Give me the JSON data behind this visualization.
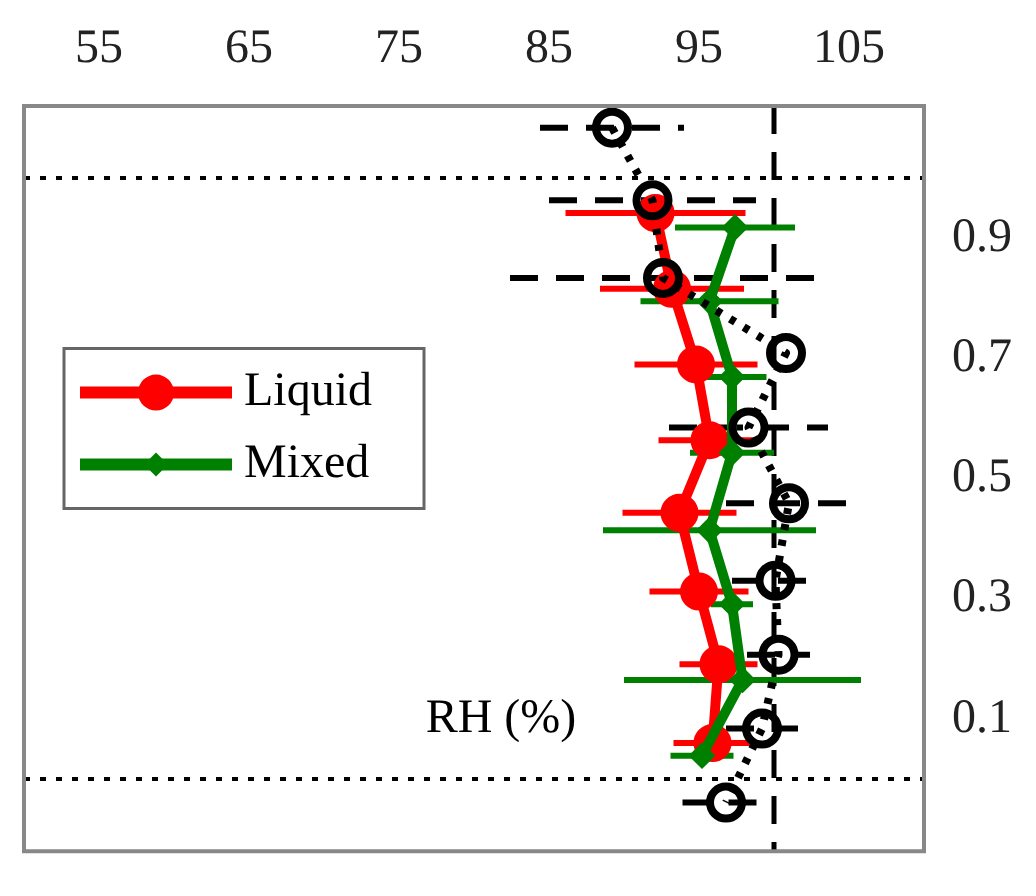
{
  "chart_data": {
    "type": "line",
    "xlabel": "RH (%)",
    "xlim": [
      50,
      110
    ],
    "xticks": [
      55,
      65,
      75,
      85,
      95,
      105
    ],
    "ylim": [
      -0.12,
      1.12
    ],
    "yticks": [
      0.1,
      0.3,
      0.5,
      0.7,
      0.9
    ],
    "grid": false,
    "legend": "left",
    "series": [
      {
        "name": "Liquid",
        "color": "#ff0000",
        "marker": "circle",
        "line_style": "solid",
        "x": [
          92.1,
          93.2,
          94.8,
          95.7,
          93.7,
          95,
          96.3,
          95.9
        ],
        "values": [
          0.942,
          0.816,
          0.69,
          0.564,
          0.443,
          0.312,
          0.191,
          0.06
        ],
        "xerrors": [
          6,
          4.8,
          4.1,
          3.4,
          3.8,
          3.3,
          2.6,
          2.6
        ]
      },
      {
        "name": "Mixed",
        "color": "#008000",
        "marker": "diamond",
        "line_style": "solid",
        "x": [
          97.4,
          95.7,
          97.2,
          97.2,
          95.7,
          97.2,
          97.9,
          95.2
        ],
        "values": [
          0.918,
          0.795,
          0.669,
          0.543,
          0.414,
          0.291,
          0.165,
          0.039
        ],
        "xerrors": [
          4,
          4.6,
          2.3,
          2.8,
          7.1,
          1.4,
          7.9,
          2.1
        ]
      },
      {
        "color": "#000000",
        "marker": "circle",
        "line_style": "dotted",
        "x": [
          89.2,
          91.9,
          92.6,
          100.8,
          98.3,
          101,
          100.1,
          100.3,
          99.2,
          96.8
        ],
        "values": [
          1.084,
          0.963,
          0.834,
          0.709,
          0.585,
          0.459,
          0.33,
          0.207,
          0.084,
          -0.039
        ],
        "xerrors": [
          4.8,
          6.9,
          10.2,
          null,
          5.3,
          4.2,
          2.9,
          2.1,
          2.4,
          2.9
        ]
      }
    ],
    "ref_lines": [
      {
        "axis": "x",
        "value": 100,
        "line_style": "dashed",
        "color": "#000000"
      },
      {
        "axis": "y",
        "value": 1,
        "line_style": "dotted",
        "color": "#000000"
      },
      {
        "axis": "y",
        "value": 0,
        "line_style": "dotted",
        "color": "#000000"
      }
    ]
  }
}
